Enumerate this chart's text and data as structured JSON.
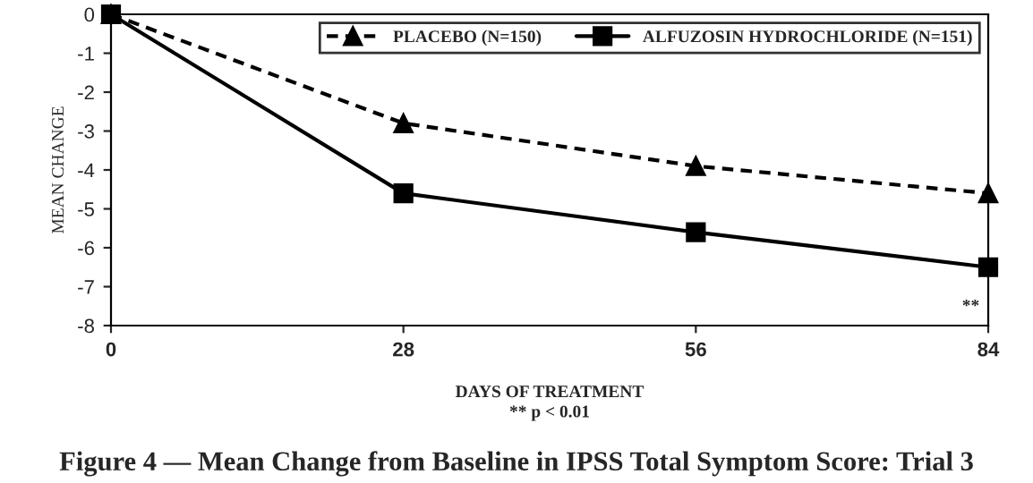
{
  "chart_data": {
    "type": "line",
    "title": "Figure 4 — Mean Change from Baseline in IPSS Total Symptom Score: Trial 3",
    "xlabel": "DAYS OF TREATMENT",
    "ylabel": "MEAN CHANGE",
    "x": [
      0,
      28,
      56,
      84
    ],
    "series": [
      {
        "name": "PLACEBO (N=150)",
        "color": "#000000",
        "values": [
          0,
          -2.8,
          -3.9,
          -4.6
        ],
        "marker": "triangle",
        "line_style": "dashed"
      },
      {
        "name": "ALFUZOSIN HYDROCHLORIDE (N=151)",
        "color": "#000000",
        "values": [
          0,
          -4.6,
          -5.6,
          -6.5
        ],
        "marker": "square",
        "line_style": "solid"
      }
    ],
    "xlim": [
      0,
      84
    ],
    "xticks": [
      0,
      28,
      56,
      84
    ],
    "ylim": [
      -8,
      0
    ],
    "yticks": [
      -8,
      -7,
      -6,
      -5,
      -4,
      -3,
      -2,
      -1,
      0
    ],
    "annotations": [
      "**",
      "** p < 0.01"
    ],
    "grid": false,
    "legend": "top right"
  }
}
